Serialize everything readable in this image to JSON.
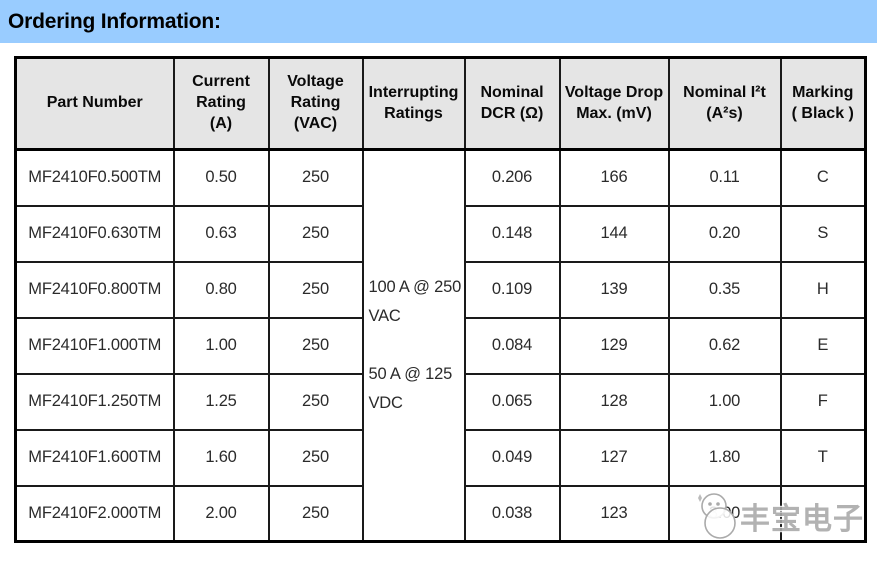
{
  "page": {
    "title": "Ordering Information:",
    "accent_color": "#99ccff",
    "header_bg": "#e5e5e5"
  },
  "table": {
    "headers": [
      "Part Number",
      "Current\nRating\n(A)",
      "Voltage\nRating\n(VAC)",
      "Interrupting\nRatings",
      "Nominal\nDCR (Ω)",
      "Voltage Drop\nMax. (mV)",
      "Nominal I²t\n(A²s)",
      "Marking\n( Black )"
    ],
    "interrupting_ratings": "100 A @ 250\nVAC\n\n50 A @ 125\nVDC",
    "rows": [
      {
        "part_number": "MF2410F0.500TM",
        "current_a": "0.50",
        "voltage_vac": "250",
        "dcr_ohm": "0.206",
        "vdrop_mv": "166",
        "i2t_a2s": "0.11",
        "marking": "C"
      },
      {
        "part_number": "MF2410F0.630TM",
        "current_a": "0.63",
        "voltage_vac": "250",
        "dcr_ohm": "0.148",
        "vdrop_mv": "144",
        "i2t_a2s": "0.20",
        "marking": "S"
      },
      {
        "part_number": "MF2410F0.800TM",
        "current_a": "0.80",
        "voltage_vac": "250",
        "dcr_ohm": "0.109",
        "vdrop_mv": "139",
        "i2t_a2s": "0.35",
        "marking": "H"
      },
      {
        "part_number": "MF2410F1.000TM",
        "current_a": "1.00",
        "voltage_vac": "250",
        "dcr_ohm": "0.084",
        "vdrop_mv": "129",
        "i2t_a2s": "0.62",
        "marking": "E"
      },
      {
        "part_number": "MF2410F1.250TM",
        "current_a": "1.25",
        "voltage_vac": "250",
        "dcr_ohm": "0.065",
        "vdrop_mv": "128",
        "i2t_a2s": "1.00",
        "marking": "F"
      },
      {
        "part_number": "MF2410F1.600TM",
        "current_a": "1.60",
        "voltage_vac": "250",
        "dcr_ohm": "0.049",
        "vdrop_mv": "127",
        "i2t_a2s": "1.80",
        "marking": "T"
      },
      {
        "part_number": "MF2410F2.000TM",
        "current_a": "2.00",
        "voltage_vac": "250",
        "dcr_ohm": "0.038",
        "vdrop_mv": "123",
        "i2t_a2s": "3.00",
        "marking": ""
      }
    ]
  },
  "watermark": {
    "text": "丰宝电子",
    "icon": "chat-smiley-icon",
    "color": "#aaaaaa"
  }
}
